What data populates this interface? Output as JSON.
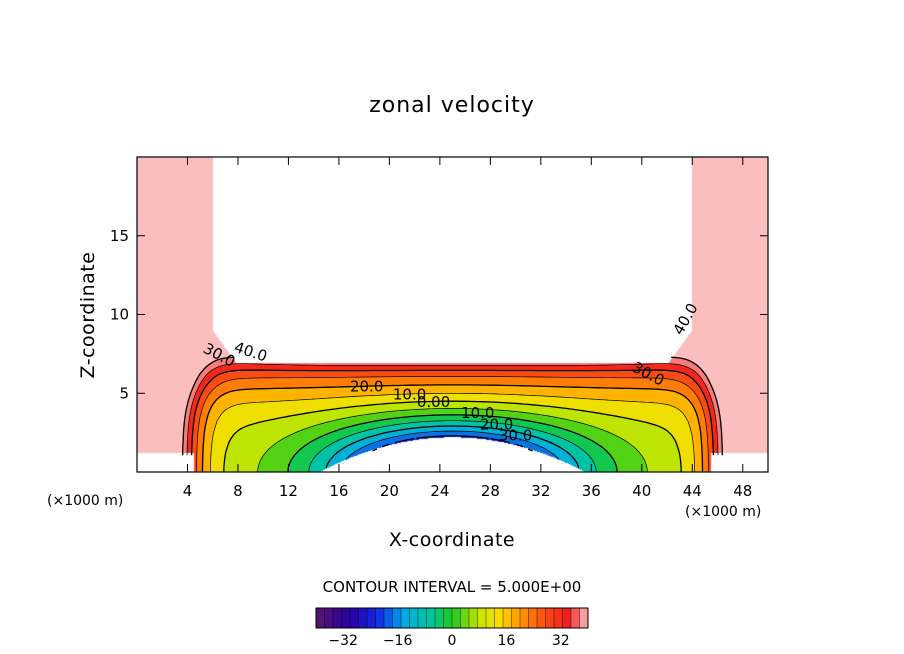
{
  "chart_data": {
    "type": "contour",
    "title": "zonal velocity",
    "xlabel": "X-coordinate",
    "ylabel": "Z-coordinate",
    "x_unit": "(×1000 m)",
    "y_unit": "(×1000 m)",
    "xlim": [
      0,
      50
    ],
    "ylim": [
      0,
      20
    ],
    "x_ticks": [
      {
        "value": 4,
        "label": "4"
      },
      {
        "value": 8,
        "label": "8"
      },
      {
        "value": 12,
        "label": "12"
      },
      {
        "value": 16,
        "label": "16"
      },
      {
        "value": 20,
        "label": "20"
      },
      {
        "value": 24,
        "label": "24"
      },
      {
        "value": 28,
        "label": "28"
      },
      {
        "value": 32,
        "label": "32"
      },
      {
        "value": 36,
        "label": "36"
      },
      {
        "value": 40,
        "label": "40"
      },
      {
        "value": 44,
        "label": "44"
      },
      {
        "value": 48,
        "label": "48"
      }
    ],
    "y_ticks": [
      {
        "value": 5,
        "label": "5"
      },
      {
        "value": 10,
        "label": "10"
      },
      {
        "value": 15,
        "label": "15"
      }
    ],
    "contour_interval_text": "CONTOUR INTERVAL = 5.000E+00",
    "contour_interval": 5,
    "contour_labels": [
      {
        "text": "40.0",
        "x": 9.0,
        "y": 7.6,
        "angle": 18
      },
      {
        "text": "30.0",
        "x": 6.5,
        "y": 7.4,
        "angle": 28
      },
      {
        "text": "20.0",
        "x": 18.2,
        "y": 5.4,
        "angle": 0
      },
      {
        "text": "10.0",
        "x": 21.6,
        "y": 4.9,
        "angle": 0
      },
      {
        "text": "0.00",
        "x": 23.5,
        "y": 4.4,
        "angle": 0
      },
      {
        "text": "10.0",
        "x": 27.0,
        "y": 3.7,
        "angle": 0
      },
      {
        "text": "20.0",
        "x": 28.5,
        "y": 3.0,
        "angle": 0
      },
      {
        "text": "30.0",
        "x": 30.0,
        "y": 2.3,
        "angle": 0
      },
      {
        "text": "30.0",
        "x": 40.5,
        "y": 6.2,
        "angle": 28
      },
      {
        "text": "40.0",
        "x": 43.5,
        "y": 9.7,
        "angle": -60
      }
    ],
    "colorbar": {
      "min": -40,
      "max": 40,
      "step": 2.5,
      "ticks": [
        {
          "value": -32,
          "label": "−32"
        },
        {
          "value": -16,
          "label": "−16"
        },
        {
          "value": 0,
          "label": "0"
        },
        {
          "value": 16,
          "label": "16"
        },
        {
          "value": 32,
          "label": "32"
        }
      ]
    }
  }
}
